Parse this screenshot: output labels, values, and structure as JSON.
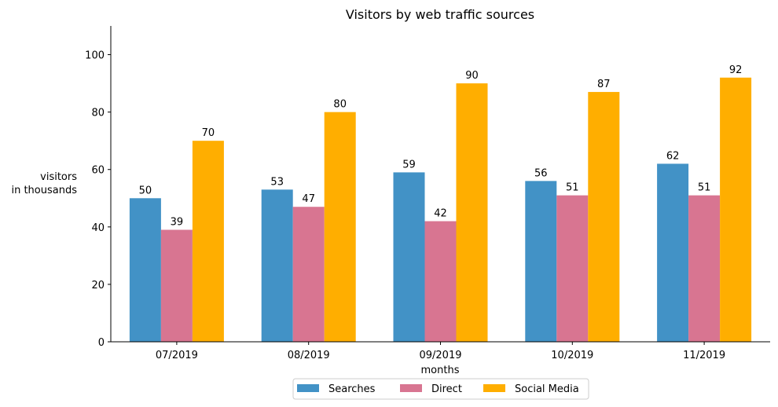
{
  "chart_data": {
    "type": "bar",
    "title": "Visitors by web traffic sources",
    "xlabel": "months",
    "ylabel_lines": [
      "visitors",
      "in thousands"
    ],
    "categories": [
      "07/2019",
      "08/2019",
      "09/2019",
      "10/2019",
      "11/2019"
    ],
    "series": [
      {
        "name": "Searches",
        "color": "#4292c6",
        "values": [
          50,
          53,
          59,
          56,
          62
        ]
      },
      {
        "name": "Direct",
        "color": "#d87591",
        "values": [
          39,
          47,
          42,
          51,
          51
        ]
      },
      {
        "name": "Social Media",
        "color": "#ffae00",
        "values": [
          70,
          80,
          90,
          87,
          92
        ]
      }
    ],
    "ylim": [
      0,
      110
    ],
    "yticks": [
      0,
      20,
      40,
      60,
      80,
      100
    ],
    "grid": false,
    "legend_position": "bottom-center"
  }
}
